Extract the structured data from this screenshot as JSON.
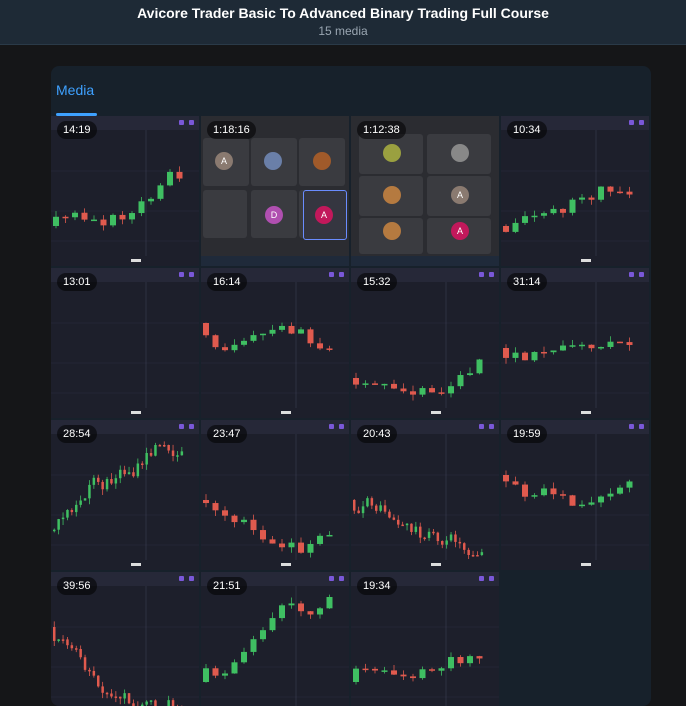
{
  "header": {
    "title": "Avicore Trader Basic To Advanced Binary Trading Full Course",
    "subtitle": "15 media"
  },
  "tabs": [
    {
      "label": "Media",
      "active": true
    }
  ],
  "colors": {
    "accent": "#3ea1ff",
    "bullish": "#3fbf62",
    "bearish": "#e05a4e"
  },
  "media": [
    {
      "duration": "14:19",
      "kind": "chart"
    },
    {
      "duration": "1:18:16",
      "kind": "meeting"
    },
    {
      "duration": "1:12:38",
      "kind": "meeting"
    },
    {
      "duration": "10:34",
      "kind": "chart"
    },
    {
      "duration": "13:01",
      "kind": "chart"
    },
    {
      "duration": "16:14",
      "kind": "chart"
    },
    {
      "duration": "15:32",
      "kind": "chart"
    },
    {
      "duration": "31:14",
      "kind": "chart"
    },
    {
      "duration": "28:54",
      "kind": "chart"
    },
    {
      "duration": "23:47",
      "kind": "chart"
    },
    {
      "duration": "20:43",
      "kind": "chart"
    },
    {
      "duration": "19:59",
      "kind": "chart"
    },
    {
      "duration": "39:56",
      "kind": "chart"
    },
    {
      "duration": "21:51",
      "kind": "chart"
    },
    {
      "duration": "19:34",
      "kind": "chart"
    }
  ]
}
